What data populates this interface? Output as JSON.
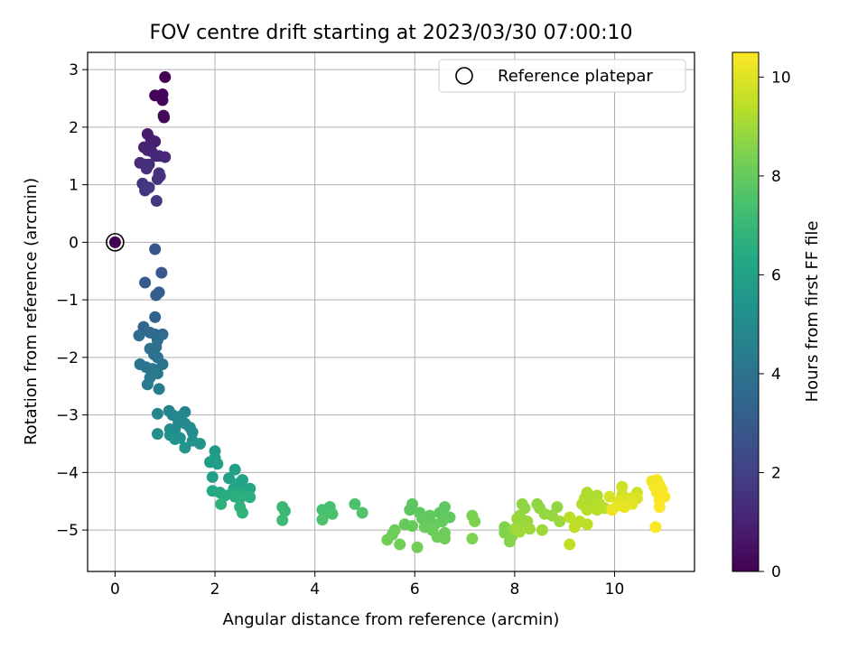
{
  "chart_data": {
    "type": "scatter",
    "title": "FOV centre drift starting at 2023/03/30 07:00:10",
    "xlabel": "Angular distance from reference (arcmin)",
    "ylabel": "Rotation from reference (arcmin)",
    "xlim": [
      -0.55,
      11.6
    ],
    "ylim": [
      -5.72,
      3.3
    ],
    "xticks": [
      0,
      2,
      4,
      6,
      8,
      10
    ],
    "yticks": [
      -5,
      -4,
      -3,
      -2,
      -1,
      0,
      1,
      2,
      3
    ],
    "grid": true,
    "legend": {
      "position": "top-right",
      "entries": [
        "Reference platepar"
      ]
    },
    "reference_point": {
      "x": 0,
      "y": 0
    },
    "colorbar": {
      "label": "Hours from first FF file",
      "range": [
        0,
        10.5
      ],
      "ticks": [
        0,
        2,
        4,
        6,
        8,
        10
      ],
      "colormap": "viridis"
    },
    "points": [
      {
        "x": 0.0,
        "y": 0.0,
        "h": 0.0
      },
      {
        "x": 1.0,
        "y": 2.87,
        "h": 0.0
      },
      {
        "x": 0.8,
        "y": 2.55,
        "h": 0.05
      },
      {
        "x": 0.95,
        "y": 2.57,
        "h": 0.1
      },
      {
        "x": 0.95,
        "y": 2.47,
        "h": 0.15
      },
      {
        "x": 0.97,
        "y": 2.2,
        "h": 0.2
      },
      {
        "x": 0.98,
        "y": 2.17,
        "h": 0.25
      },
      {
        "x": 0.65,
        "y": 1.88,
        "h": 0.8
      },
      {
        "x": 0.72,
        "y": 1.78,
        "h": 0.85
      },
      {
        "x": 0.8,
        "y": 1.75,
        "h": 0.9
      },
      {
        "x": 0.58,
        "y": 1.65,
        "h": 0.95
      },
      {
        "x": 0.65,
        "y": 1.6,
        "h": 1.0
      },
      {
        "x": 0.73,
        "y": 1.58,
        "h": 1.05
      },
      {
        "x": 0.82,
        "y": 1.5,
        "h": 1.1
      },
      {
        "x": 0.88,
        "y": 1.5,
        "h": 1.15
      },
      {
        "x": 1.0,
        "y": 1.48,
        "h": 1.2
      },
      {
        "x": 0.5,
        "y": 1.38,
        "h": 1.25
      },
      {
        "x": 0.6,
        "y": 1.35,
        "h": 1.3
      },
      {
        "x": 0.68,
        "y": 1.35,
        "h": 1.35
      },
      {
        "x": 0.63,
        "y": 1.28,
        "h": 1.4
      },
      {
        "x": 0.88,
        "y": 1.2,
        "h": 1.45
      },
      {
        "x": 0.85,
        "y": 1.1,
        "h": 1.5
      },
      {
        "x": 0.9,
        "y": 1.15,
        "h": 1.55
      },
      {
        "x": 0.55,
        "y": 1.02,
        "h": 1.6
      },
      {
        "x": 0.6,
        "y": 0.9,
        "h": 1.65
      },
      {
        "x": 0.68,
        "y": 0.95,
        "h": 1.7
      },
      {
        "x": 0.83,
        "y": 0.72,
        "h": 1.75
      },
      {
        "x": 0.8,
        "y": -0.12,
        "h": 2.8
      },
      {
        "x": 0.93,
        "y": -0.53,
        "h": 2.9
      },
      {
        "x": 0.6,
        "y": -0.7,
        "h": 3.0
      },
      {
        "x": 0.88,
        "y": -0.87,
        "h": 3.05
      },
      {
        "x": 0.82,
        "y": -0.92,
        "h": 3.1
      },
      {
        "x": 0.8,
        "y": -1.3,
        "h": 3.3
      },
      {
        "x": 0.57,
        "y": -1.47,
        "h": 3.5
      },
      {
        "x": 0.7,
        "y": -1.57,
        "h": 3.55
      },
      {
        "x": 0.8,
        "y": -1.6,
        "h": 3.6
      },
      {
        "x": 0.95,
        "y": -1.6,
        "h": 3.65
      },
      {
        "x": 0.48,
        "y": -1.62,
        "h": 3.7
      },
      {
        "x": 0.85,
        "y": -1.7,
        "h": 3.75
      },
      {
        "x": 0.82,
        "y": -1.82,
        "h": 3.8
      },
      {
        "x": 0.7,
        "y": -1.85,
        "h": 3.85
      },
      {
        "x": 0.78,
        "y": -1.95,
        "h": 3.9
      },
      {
        "x": 0.85,
        "y": -2.0,
        "h": 3.95
      },
      {
        "x": 0.5,
        "y": -2.12,
        "h": 4.0
      },
      {
        "x": 0.95,
        "y": -2.12,
        "h": 4.05
      },
      {
        "x": 0.62,
        "y": -2.17,
        "h": 4.1
      },
      {
        "x": 0.75,
        "y": -2.2,
        "h": 4.15
      },
      {
        "x": 0.85,
        "y": -2.28,
        "h": 4.2
      },
      {
        "x": 0.7,
        "y": -2.35,
        "h": 4.25
      },
      {
        "x": 0.65,
        "y": -2.47,
        "h": 4.3
      },
      {
        "x": 0.88,
        "y": -2.55,
        "h": 4.35
      },
      {
        "x": 1.08,
        "y": -2.93,
        "h": 4.6
      },
      {
        "x": 1.4,
        "y": -2.95,
        "h": 4.65
      },
      {
        "x": 0.85,
        "y": -2.98,
        "h": 4.7
      },
      {
        "x": 1.15,
        "y": -3.0,
        "h": 4.75
      },
      {
        "x": 1.32,
        "y": -3.02,
        "h": 4.8
      },
      {
        "x": 1.27,
        "y": -3.12,
        "h": 4.85
      },
      {
        "x": 1.4,
        "y": -3.15,
        "h": 4.9
      },
      {
        "x": 1.5,
        "y": -3.22,
        "h": 4.95
      },
      {
        "x": 1.1,
        "y": -3.25,
        "h": 5.0
      },
      {
        "x": 1.2,
        "y": -3.25,
        "h": 5.05
      },
      {
        "x": 1.55,
        "y": -3.3,
        "h": 5.1
      },
      {
        "x": 0.85,
        "y": -3.33,
        "h": 5.15
      },
      {
        "x": 1.1,
        "y": -3.35,
        "h": 5.2
      },
      {
        "x": 1.3,
        "y": -3.4,
        "h": 5.25
      },
      {
        "x": 1.2,
        "y": -3.42,
        "h": 5.3
      },
      {
        "x": 1.55,
        "y": -3.45,
        "h": 5.35
      },
      {
        "x": 1.7,
        "y": -3.5,
        "h": 5.4
      },
      {
        "x": 1.4,
        "y": -3.57,
        "h": 5.45
      },
      {
        "x": 2.0,
        "y": -3.63,
        "h": 5.7
      },
      {
        "x": 2.0,
        "y": -3.75,
        "h": 5.75
      },
      {
        "x": 1.9,
        "y": -3.82,
        "h": 5.8
      },
      {
        "x": 2.05,
        "y": -3.85,
        "h": 5.85
      },
      {
        "x": 2.4,
        "y": -3.95,
        "h": 5.9
      },
      {
        "x": 1.95,
        "y": -4.08,
        "h": 5.95
      },
      {
        "x": 2.28,
        "y": -4.1,
        "h": 6.0
      },
      {
        "x": 2.55,
        "y": -4.13,
        "h": 6.05
      },
      {
        "x": 2.45,
        "y": -4.2,
        "h": 6.1
      },
      {
        "x": 2.5,
        "y": -4.25,
        "h": 6.15
      },
      {
        "x": 2.38,
        "y": -4.28,
        "h": 6.2
      },
      {
        "x": 2.7,
        "y": -4.28,
        "h": 6.25
      },
      {
        "x": 1.95,
        "y": -4.32,
        "h": 6.3
      },
      {
        "x": 2.1,
        "y": -4.35,
        "h": 6.35
      },
      {
        "x": 2.35,
        "y": -4.35,
        "h": 6.4
      },
      {
        "x": 2.55,
        "y": -4.37,
        "h": 6.45
      },
      {
        "x": 2.2,
        "y": -4.4,
        "h": 6.5
      },
      {
        "x": 2.4,
        "y": -4.42,
        "h": 6.55
      },
      {
        "x": 2.7,
        "y": -4.43,
        "h": 6.6
      },
      {
        "x": 2.5,
        "y": -4.45,
        "h": 6.65
      },
      {
        "x": 2.12,
        "y": -4.55,
        "h": 6.7
      },
      {
        "x": 2.5,
        "y": -4.6,
        "h": 6.75
      },
      {
        "x": 2.55,
        "y": -4.7,
        "h": 6.8
      },
      {
        "x": 3.35,
        "y": -4.6,
        "h": 7.0
      },
      {
        "x": 3.4,
        "y": -4.67,
        "h": 7.05
      },
      {
        "x": 3.35,
        "y": -4.83,
        "h": 7.1
      },
      {
        "x": 4.15,
        "y": -4.65,
        "h": 7.3
      },
      {
        "x": 4.3,
        "y": -4.6,
        "h": 7.35
      },
      {
        "x": 4.2,
        "y": -4.7,
        "h": 7.4
      },
      {
        "x": 4.35,
        "y": -4.72,
        "h": 7.45
      },
      {
        "x": 4.15,
        "y": -4.82,
        "h": 7.5
      },
      {
        "x": 4.8,
        "y": -4.55,
        "h": 7.55
      },
      {
        "x": 4.95,
        "y": -4.7,
        "h": 7.6
      },
      {
        "x": 5.95,
        "y": -4.55,
        "h": 7.8
      },
      {
        "x": 5.9,
        "y": -4.65,
        "h": 7.82
      },
      {
        "x": 6.1,
        "y": -4.7,
        "h": 7.84
      },
      {
        "x": 6.6,
        "y": -4.6,
        "h": 7.86
      },
      {
        "x": 6.5,
        "y": -4.7,
        "h": 7.88
      },
      {
        "x": 6.3,
        "y": -4.75,
        "h": 7.9
      },
      {
        "x": 6.7,
        "y": -4.78,
        "h": 7.92
      },
      {
        "x": 6.15,
        "y": -4.8,
        "h": 7.94
      },
      {
        "x": 6.25,
        "y": -4.85,
        "h": 7.96
      },
      {
        "x": 6.55,
        "y": -4.85,
        "h": 7.98
      },
      {
        "x": 5.8,
        "y": -4.9,
        "h": 8.0
      },
      {
        "x": 6.4,
        "y": -4.9,
        "h": 8.02
      },
      {
        "x": 5.95,
        "y": -4.93,
        "h": 8.04
      },
      {
        "x": 6.2,
        "y": -4.95,
        "h": 8.06
      },
      {
        "x": 6.35,
        "y": -5.0,
        "h": 8.08
      },
      {
        "x": 5.6,
        "y": -5.0,
        "h": 8.1
      },
      {
        "x": 6.6,
        "y": -5.05,
        "h": 8.12
      },
      {
        "x": 5.55,
        "y": -5.08,
        "h": 8.14
      },
      {
        "x": 6.45,
        "y": -5.12,
        "h": 8.16
      },
      {
        "x": 6.6,
        "y": -5.15,
        "h": 8.18
      },
      {
        "x": 5.45,
        "y": -5.17,
        "h": 8.2
      },
      {
        "x": 5.7,
        "y": -5.25,
        "h": 8.22
      },
      {
        "x": 6.05,
        "y": -5.3,
        "h": 8.24
      },
      {
        "x": 7.15,
        "y": -4.75,
        "h": 8.4
      },
      {
        "x": 7.2,
        "y": -4.85,
        "h": 8.42
      },
      {
        "x": 7.15,
        "y": -5.15,
        "h": 8.44
      },
      {
        "x": 7.8,
        "y": -4.95,
        "h": 8.5
      },
      {
        "x": 7.8,
        "y": -5.05,
        "h": 8.52
      },
      {
        "x": 7.95,
        "y": -5.1,
        "h": 8.54
      },
      {
        "x": 7.9,
        "y": -5.2,
        "h": 8.56
      },
      {
        "x": 8.15,
        "y": -4.55,
        "h": 8.7
      },
      {
        "x": 8.2,
        "y": -4.62,
        "h": 8.72
      },
      {
        "x": 8.45,
        "y": -4.55,
        "h": 8.74
      },
      {
        "x": 8.5,
        "y": -4.62,
        "h": 8.76
      },
      {
        "x": 8.85,
        "y": -4.6,
        "h": 8.78
      },
      {
        "x": 8.1,
        "y": -4.75,
        "h": 8.8
      },
      {
        "x": 8.6,
        "y": -4.72,
        "h": 8.82
      },
      {
        "x": 8.75,
        "y": -4.75,
        "h": 8.84
      },
      {
        "x": 8.05,
        "y": -4.8,
        "h": 8.86
      },
      {
        "x": 8.25,
        "y": -4.85,
        "h": 8.88
      },
      {
        "x": 8.2,
        "y": -4.92,
        "h": 8.9
      },
      {
        "x": 8.9,
        "y": -4.85,
        "h": 8.92
      },
      {
        "x": 8.0,
        "y": -4.98,
        "h": 8.94
      },
      {
        "x": 8.3,
        "y": -4.98,
        "h": 8.96
      },
      {
        "x": 8.55,
        "y": -5.0,
        "h": 8.98
      },
      {
        "x": 8.1,
        "y": -5.03,
        "h": 9.0
      },
      {
        "x": 9.45,
        "y": -4.35,
        "h": 9.2
      },
      {
        "x": 9.65,
        "y": -4.4,
        "h": 9.22
      },
      {
        "x": 9.4,
        "y": -4.45,
        "h": 9.24
      },
      {
        "x": 9.55,
        "y": -4.48,
        "h": 9.26
      },
      {
        "x": 9.35,
        "y": -4.55,
        "h": 9.28
      },
      {
        "x": 9.5,
        "y": -4.6,
        "h": 9.3
      },
      {
        "x": 9.7,
        "y": -4.55,
        "h": 9.32
      },
      {
        "x": 9.45,
        "y": -4.65,
        "h": 9.34
      },
      {
        "x": 9.65,
        "y": -4.65,
        "h": 9.36
      },
      {
        "x": 9.8,
        "y": -4.62,
        "h": 9.38
      },
      {
        "x": 9.1,
        "y": -4.78,
        "h": 9.4
      },
      {
        "x": 9.3,
        "y": -4.85,
        "h": 9.42
      },
      {
        "x": 9.45,
        "y": -4.9,
        "h": 9.44
      },
      {
        "x": 9.2,
        "y": -4.95,
        "h": 9.46
      },
      {
        "x": 9.1,
        "y": -5.25,
        "h": 9.48
      },
      {
        "x": 10.15,
        "y": -4.25,
        "h": 9.7
      },
      {
        "x": 10.45,
        "y": -4.35,
        "h": 9.75
      },
      {
        "x": 10.15,
        "y": -4.38,
        "h": 9.8
      },
      {
        "x": 9.9,
        "y": -4.42,
        "h": 9.85
      },
      {
        "x": 10.3,
        "y": -4.45,
        "h": 9.9
      },
      {
        "x": 10.45,
        "y": -4.45,
        "h": 9.95
      },
      {
        "x": 10.1,
        "y": -4.5,
        "h": 10.0
      },
      {
        "x": 10.35,
        "y": -4.55,
        "h": 10.05
      },
      {
        "x": 10.05,
        "y": -4.58,
        "h": 10.1
      },
      {
        "x": 10.2,
        "y": -4.6,
        "h": 10.15
      },
      {
        "x": 9.95,
        "y": -4.65,
        "h": 10.2
      },
      {
        "x": 10.75,
        "y": -4.15,
        "h": 10.3
      },
      {
        "x": 10.85,
        "y": -4.13,
        "h": 10.32
      },
      {
        "x": 10.8,
        "y": -4.25,
        "h": 10.34
      },
      {
        "x": 10.9,
        "y": -4.22,
        "h": 10.36
      },
      {
        "x": 10.95,
        "y": -4.3,
        "h": 10.38
      },
      {
        "x": 10.85,
        "y": -4.35,
        "h": 10.4
      },
      {
        "x": 11.0,
        "y": -4.42,
        "h": 10.42
      },
      {
        "x": 10.9,
        "y": -4.48,
        "h": 10.44
      },
      {
        "x": 10.9,
        "y": -4.6,
        "h": 10.46
      },
      {
        "x": 10.82,
        "y": -4.95,
        "h": 10.48
      }
    ]
  }
}
